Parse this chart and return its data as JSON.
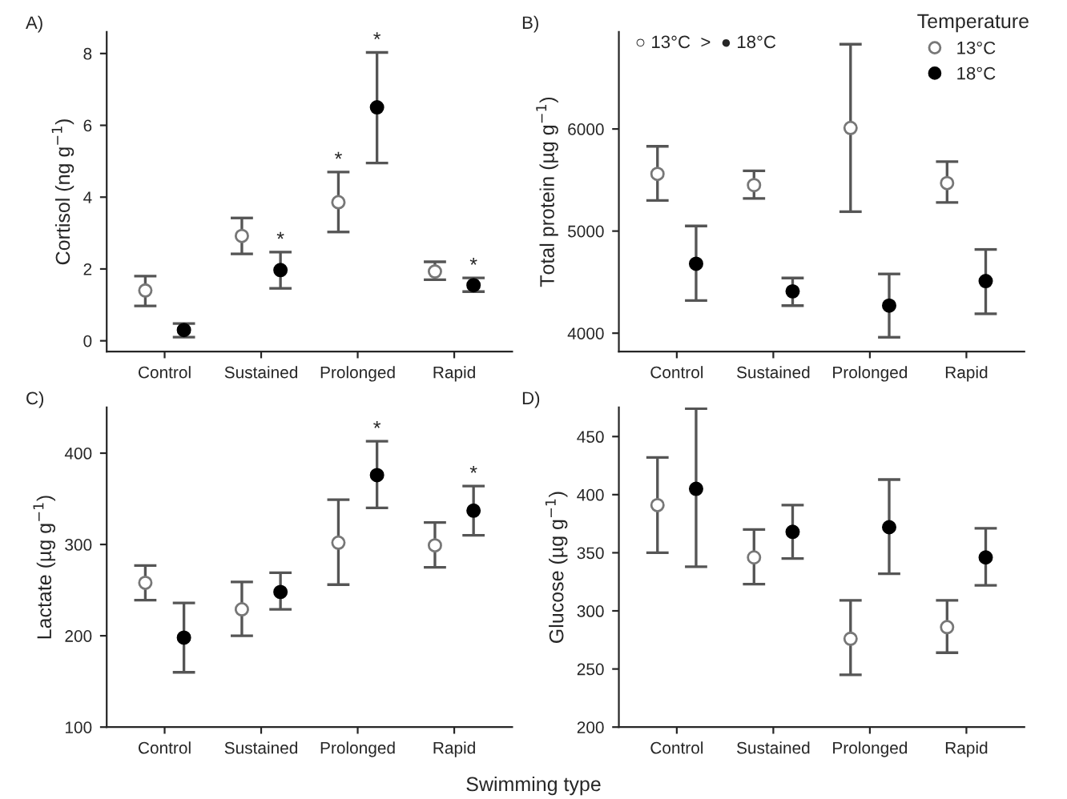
{
  "chart_data": [
    {
      "type": "scatter",
      "title": "A)",
      "ylabel": "Cortisol (ng g$^{−1}$)",
      "categories": [
        "Control",
        "Sustained",
        "Prolonged",
        "Rapid"
      ],
      "ylim": [
        -0.3,
        8.6
      ],
      "yticks": [
        0,
        2,
        4,
        6,
        8
      ],
      "grid": false,
      "legend": false,
      "marker": "circle",
      "series": [
        {
          "color": "#ffffff",
          "values": [
            1.4,
            2.92,
            3.86,
            1.93
          ],
          "errors": [
            [
              0.97,
              1.8
            ],
            [
              2.42,
              3.42
            ],
            [
              3.03,
              4.7
            ],
            [
              1.7,
              2.2
            ]
          ],
          "value_labels": [
            null,
            null,
            "*",
            null
          ]
        },
        {
          "color": "#000000",
          "values": [
            0.3,
            1.97,
            6.5,
            1.55
          ],
          "errors": [
            [
              0.1,
              0.48
            ],
            [
              1.46,
              2.47
            ],
            [
              4.95,
              8.03
            ],
            [
              1.37,
              1.75
            ]
          ],
          "value_labels": [
            null,
            "*",
            "*",
            "*"
          ]
        }
      ]
    },
    {
      "type": "scatter",
      "title": "B)",
      "ylabel": "Total protein (µg g$^{−1}$)",
      "categories": [
        "Control",
        "Sustained",
        "Prolonged",
        "Rapid"
      ],
      "ylim": [
        3820,
        6950
      ],
      "yticks": [
        4000,
        5000,
        6000
      ],
      "grid": false,
      "legend": "top right",
      "legend_title": "Temperature",
      "marker": "circle",
      "series": [
        {
          "name": "13°C",
          "color": "#ffffff",
          "values": [
            5560,
            5450,
            6010,
            5470
          ],
          "errors": [
            [
              5300,
              5830
            ],
            [
              5320,
              5590
            ],
            [
              5190,
              6830
            ],
            [
              5280,
              5680
            ]
          ]
        },
        {
          "name": "18°C",
          "color": "#000000",
          "values": [
            4680,
            4410,
            4270,
            4510
          ],
          "errors": [
            [
              4320,
              5050
            ],
            [
              4270,
              4540
            ],
            [
              3960,
              4580
            ],
            [
              4190,
              4820
            ]
          ]
        }
      ],
      "annotations": [
        "○ 13°C  >  ● 18°C"
      ]
    },
    {
      "type": "scatter",
      "title": "C)",
      "ylabel": "Lactate (µg g$^{−1}$)",
      "xlabel": "Swimming type",
      "categories": [
        "Control",
        "Sustained",
        "Prolonged",
        "Rapid"
      ],
      "ylim": [
        100,
        450
      ],
      "yticks": [
        100,
        200,
        300,
        400
      ],
      "grid": false,
      "legend": false,
      "marker": "circle",
      "series": [
        {
          "color": "#ffffff",
          "values": [
            258,
            229,
            302,
            299
          ],
          "errors": [
            [
              239,
              277
            ],
            [
              200,
              259
            ],
            [
              256,
              349
            ],
            [
              275,
              324
            ]
          ]
        },
        {
          "color": "#000000",
          "values": [
            198,
            248,
            376,
            337
          ],
          "errors": [
            [
              160,
              236
            ],
            [
              229,
              269
            ],
            [
              340,
              413
            ],
            [
              310,
              364
            ]
          ],
          "value_labels": [
            null,
            null,
            "*",
            "*"
          ]
        }
      ]
    },
    {
      "type": "scatter",
      "title": "D)",
      "ylabel": "Glucose (µg g$^{−1}$)",
      "categories": [
        "Control",
        "Sustained",
        "Prolonged",
        "Rapid"
      ],
      "ylim": [
        200,
        475
      ],
      "yticks": [
        200,
        250,
        300,
        350,
        400,
        450
      ],
      "grid": false,
      "legend": false,
      "marker": "circle",
      "series": [
        {
          "color": "#ffffff",
          "values": [
            391,
            346,
            276,
            286
          ],
          "errors": [
            [
              350,
              432
            ],
            [
              323,
              370
            ],
            [
              245,
              309
            ],
            [
              264,
              309
            ]
          ]
        },
        {
          "color": "#000000",
          "values": [
            405,
            368,
            372,
            346
          ],
          "errors": [
            [
              338,
              474
            ],
            [
              345,
              391
            ],
            [
              332,
              413
            ],
            [
              322,
              371
            ]
          ]
        }
      ]
    }
  ]
}
